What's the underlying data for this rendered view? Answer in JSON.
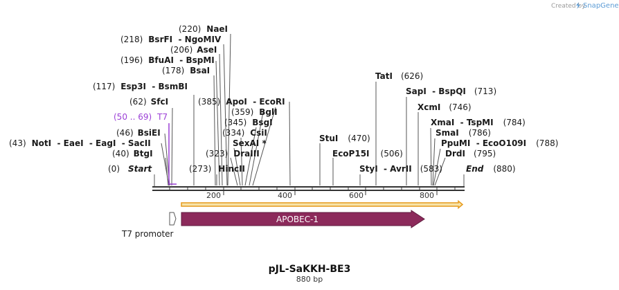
{
  "app": {
    "created_by": "Created by",
    "brand": "SnapGene"
  },
  "plasmid": {
    "name": "pJL-SaKKH-BE3",
    "length_label": "880 bp"
  },
  "colors": {
    "primer": "#9b3fd6",
    "feature": "#8c2a5b",
    "orf": "#f0a830",
    "line": "#555555"
  },
  "ruler": {
    "ticks": [
      "200",
      "400",
      "600",
      "800"
    ]
  },
  "labels": [
    {
      "pos": "(0)",
      "name": "Start",
      "style": "italic"
    },
    {
      "pos": "(40)",
      "name": "BtgI"
    },
    {
      "pos": "(43)",
      "name": "NotI  - EaeI  - EagI  - SacII"
    },
    {
      "pos": "(46)",
      "name": "BsiEI"
    },
    {
      "pos": "(50 .. 69)",
      "name": "T7",
      "style": "primer"
    },
    {
      "pos": "(62)",
      "name": "SfcI"
    },
    {
      "pos": "(117)",
      "name": "Esp3I  - BsmBI"
    },
    {
      "pos": "(178)",
      "name": "BsaI"
    },
    {
      "pos": "(196)",
      "name": "BfuAI  - BspMI"
    },
    {
      "pos": "(206)",
      "name": "AseI"
    },
    {
      "pos": "(218)",
      "name": "BsrFI  - NgoMIV"
    },
    {
      "pos": "(220)",
      "name": "NaeI"
    },
    {
      "pos": "(273)",
      "name": "HincII"
    },
    {
      "pos": "(323)",
      "name": "DraIII"
    },
    {
      "pos": "(334)",
      "name": "SexAI *"
    },
    {
      "pos": "(334)",
      "name": "CsiI"
    },
    {
      "pos": "(345)",
      "name": "BsgI"
    },
    {
      "pos": "(359)",
      "name": "BglI"
    },
    {
      "pos": "(385)",
      "name": "ApoI  - EcoRI"
    },
    {
      "pos": "(470)",
      "name": "StuI"
    },
    {
      "pos": "(506)",
      "name": "EcoP15I"
    },
    {
      "pos": "(583)",
      "name": "StyI  - AvrII"
    },
    {
      "pos": "(626)",
      "name": "TatI"
    },
    {
      "pos": "(713)",
      "name": "SapI  - BspQI"
    },
    {
      "pos": "(746)",
      "name": "XcmI"
    },
    {
      "pos": "(784)",
      "name": "XmaI  - TspMI"
    },
    {
      "pos": "(786)",
      "name": "SmaI"
    },
    {
      "pos": "(788)",
      "name": "PpuMI  - EcoO109I"
    },
    {
      "pos": "(795)",
      "name": "DrdI"
    },
    {
      "pos": "(880)",
      "name": "End",
      "style": "italic"
    }
  ],
  "features": {
    "t7_promoter": "T7 promoter",
    "apobec": "APOBEC-1"
  }
}
